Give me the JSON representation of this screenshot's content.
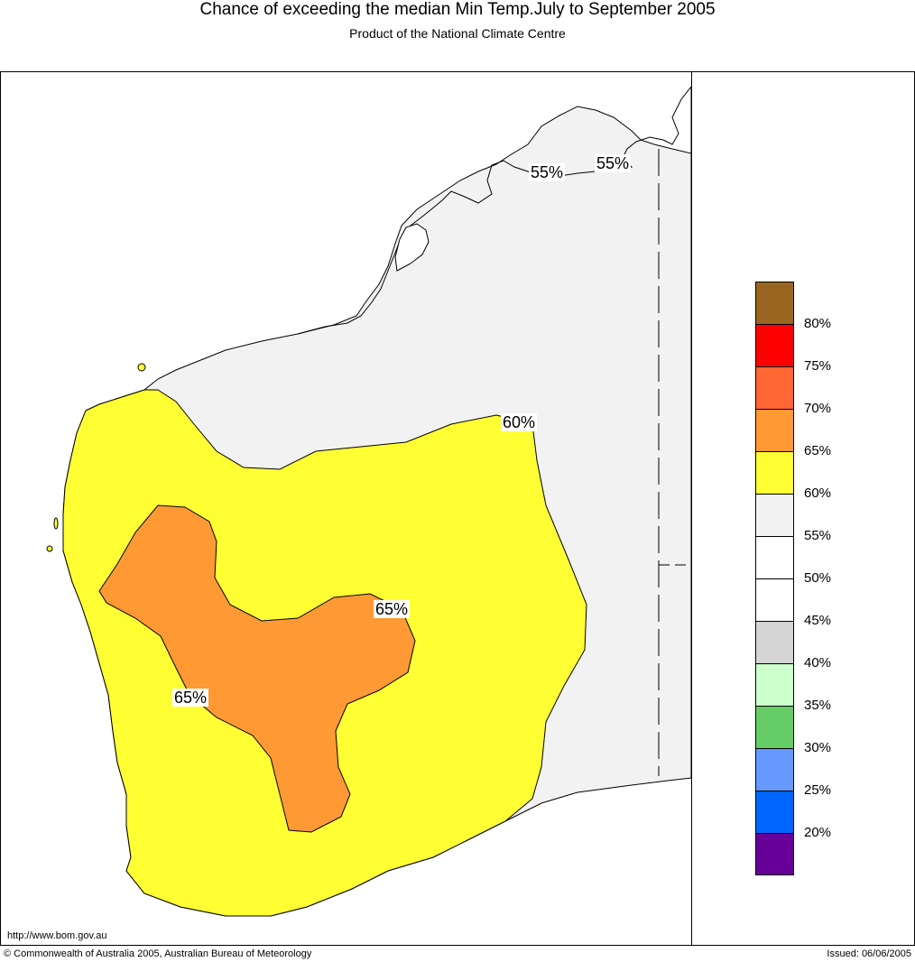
{
  "header": {
    "title": "Chance of exceeding the median Min Temp.July to September 2005",
    "subtitle": "Product of the National Climate Centre"
  },
  "map_labels": [
    {
      "text": "55%"
    },
    {
      "text": "55%"
    },
    {
      "text": "60%"
    },
    {
      "text": "65%"
    },
    {
      "text": "65%"
    }
  ],
  "legend": {
    "bands": [
      {
        "color": "#996622",
        "label": ""
      },
      {
        "color": "#ff0000",
        "label": "80%"
      },
      {
        "color": "#ff6633",
        "label": "75%"
      },
      {
        "color": "#ff9933",
        "label": "70%"
      },
      {
        "color": "#ffff33",
        "label": "65%"
      },
      {
        "color": "#f2f2f2",
        "label": "60%"
      },
      {
        "color": "#ffffff",
        "label": "55%"
      },
      {
        "color": "#ffffff",
        "label": "50%"
      },
      {
        "color": "#d4d4d4",
        "label": "45%"
      },
      {
        "color": "#ccffcc",
        "label": "40%"
      },
      {
        "color": "#66cc66",
        "label": "35%"
      },
      {
        "color": "#6699ff",
        "label": "30%"
      },
      {
        "color": "#0066ff",
        "label": "25%"
      },
      {
        "color": "#660099",
        "label": "20%"
      }
    ]
  },
  "footer": {
    "url": "http://www.bom.gov.au",
    "copyright": "© Commonwealth of Australia 2005, Australian Bureau of Meteorology",
    "issued": "Issued: 06/06/2005"
  }
}
